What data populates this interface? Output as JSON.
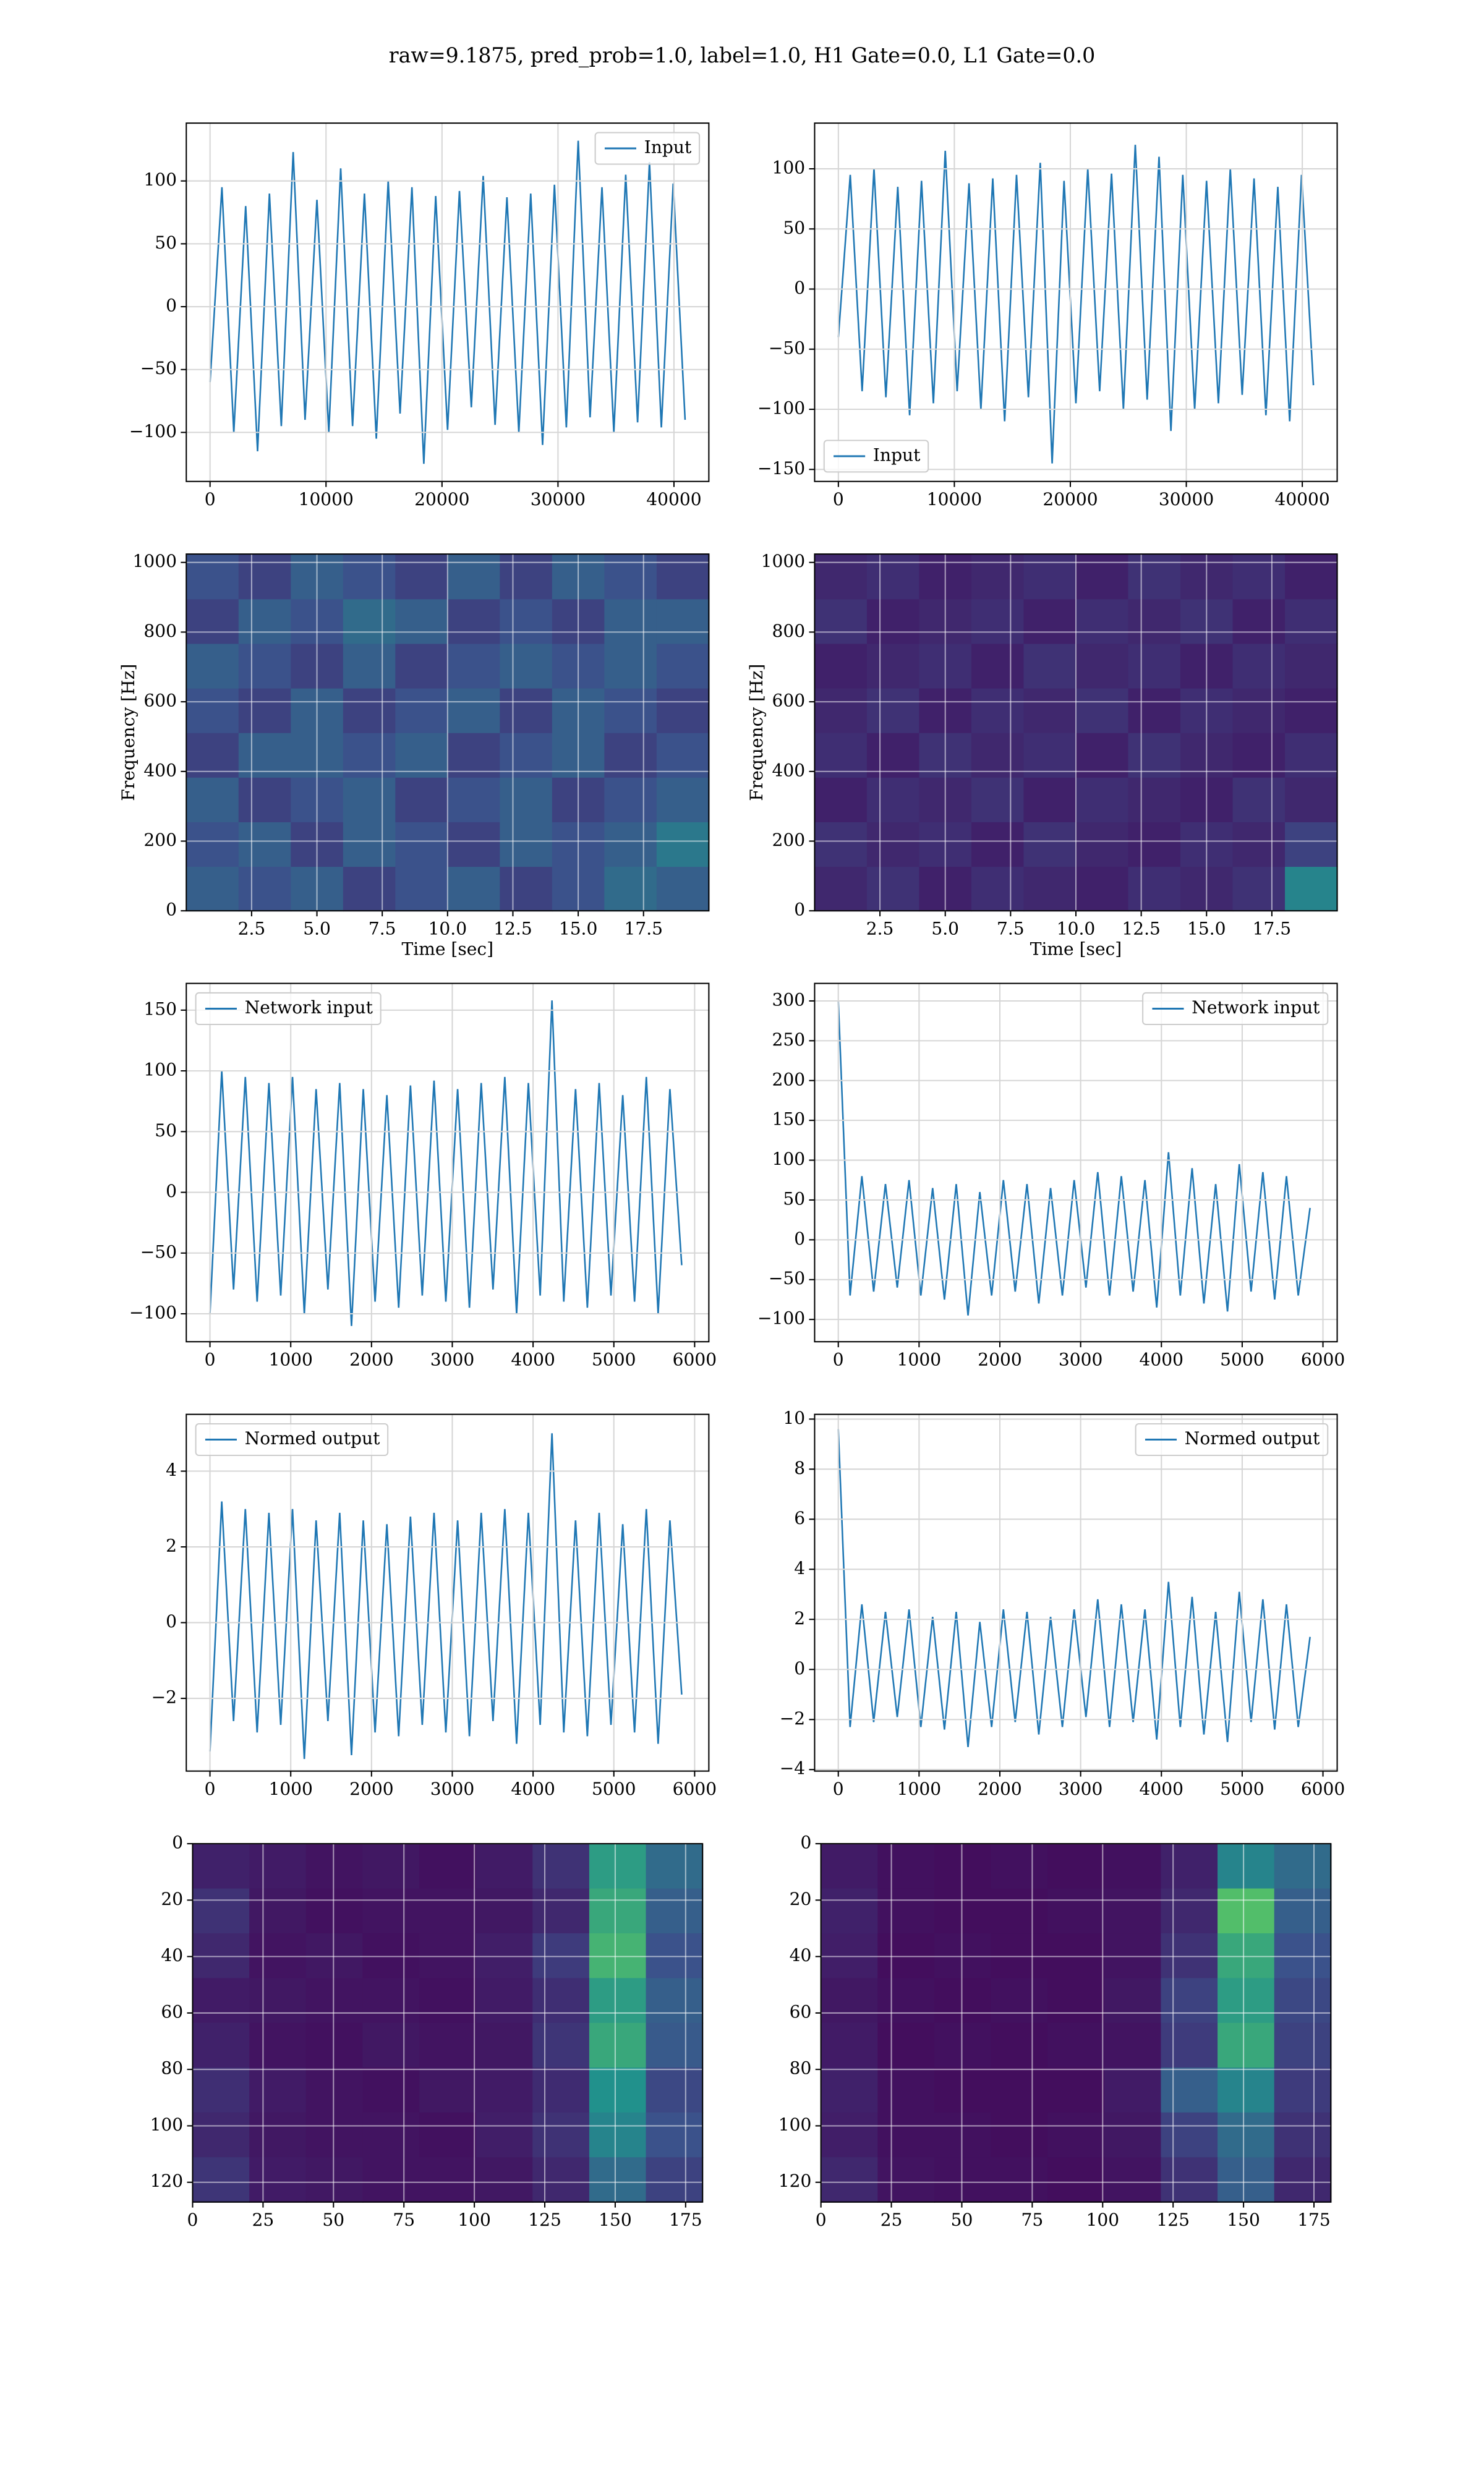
{
  "figure_title": "raw=9.1875, pred_prob=1.0, label=1.0, H1 Gate=0.0, L1 Gate=0.0",
  "chart_data": [
    {
      "type": "line",
      "legend": "upper right",
      "grid": true,
      "x": [
        0,
        1024,
        2048,
        3072,
        4096,
        5120,
        6144,
        7168,
        8192,
        9216,
        10240,
        11264,
        12288,
        13312,
        14336,
        15360,
        16384,
        17408,
        18432,
        19456,
        20480,
        21504,
        22528,
        23552,
        24576,
        25600,
        26624,
        27648,
        28672,
        29696,
        30720,
        31744,
        32768,
        33792,
        34816,
        35840,
        36864,
        37888,
        38912,
        39936,
        40960
      ],
      "series": [
        {
          "name": "Input",
          "color": "#1f77b4",
          "values": [
            -60,
            95,
            -100,
            80,
            -115,
            90,
            -95,
            123,
            -90,
            85,
            -100,
            110,
            -95,
            90,
            -105,
            100,
            -85,
            95,
            -125,
            88,
            -98,
            92,
            -80,
            104,
            -94,
            87,
            -100,
            90,
            -110,
            97,
            -96,
            132,
            -88,
            95,
            -100,
            105,
            -92,
            115,
            -96,
            98,
            -90
          ]
        }
      ],
      "xlim": [
        -2048,
        43008
      ],
      "xticks": [
        0,
        10000,
        20000,
        30000,
        40000
      ],
      "ylim": [
        -139,
        146
      ],
      "yticks": [
        {
          "value": -100,
          "label": "−100"
        },
        {
          "value": -50,
          "label": "−50"
        },
        0,
        50,
        100
      ]
    },
    {
      "type": "line",
      "legend": "lower left",
      "grid": true,
      "x": [
        0,
        1024,
        2048,
        3072,
        4096,
        5120,
        6144,
        7168,
        8192,
        9216,
        10240,
        11264,
        12288,
        13312,
        14336,
        15360,
        16384,
        17408,
        18432,
        19456,
        20480,
        21504,
        22528,
        23552,
        24576,
        25600,
        26624,
        27648,
        28672,
        29696,
        30720,
        31744,
        32768,
        33792,
        34816,
        35840,
        36864,
        37888,
        38912,
        39936,
        40960
      ],
      "series": [
        {
          "name": "Input",
          "color": "#1f77b4",
          "values": [
            -40,
            95,
            -85,
            100,
            -90,
            85,
            -105,
            90,
            -95,
            115,
            -85,
            88,
            -100,
            92,
            -110,
            95,
            -90,
            105,
            -145,
            90,
            -95,
            100,
            -85,
            96,
            -100,
            120,
            -92,
            110,
            -118,
            95,
            -100,
            90,
            -95,
            100,
            -88,
            92,
            -105,
            85,
            -110,
            95,
            -80
          ]
        }
      ],
      "xlim": [
        -2048,
        43008
      ],
      "xticks": [
        0,
        10000,
        20000,
        30000,
        40000
      ],
      "ylim": [
        -160,
        138
      ],
      "yticks": [
        {
          "value": -150,
          "label": "−150"
        },
        {
          "value": -100,
          "label": "−100"
        },
        {
          "value": -50,
          "label": "−50"
        },
        0,
        50,
        100
      ]
    },
    {
      "type": "heatmap",
      "colormap": "viridis",
      "grid": true,
      "xlabel": "Time [sec]",
      "ylabel": "Frequency [Hz]",
      "values": [
        [
          0.3,
          0.25,
          0.3,
          0.2,
          0.25,
          0.3,
          0.2,
          0.25,
          0.35,
          0.3
        ],
        [
          0.25,
          0.3,
          0.2,
          0.3,
          0.25,
          0.2,
          0.3,
          0.25,
          0.3,
          0.4
        ],
        [
          0.3,
          0.2,
          0.25,
          0.3,
          0.2,
          0.25,
          0.3,
          0.2,
          0.25,
          0.3
        ],
        [
          0.2,
          0.3,
          0.3,
          0.25,
          0.3,
          0.2,
          0.25,
          0.3,
          0.2,
          0.25
        ],
        [
          0.25,
          0.2,
          0.3,
          0.2,
          0.25,
          0.3,
          0.2,
          0.3,
          0.25,
          0.2
        ],
        [
          0.3,
          0.25,
          0.2,
          0.3,
          0.2,
          0.25,
          0.3,
          0.25,
          0.3,
          0.25
        ],
        [
          0.2,
          0.3,
          0.25,
          0.35,
          0.3,
          0.2,
          0.25,
          0.2,
          0.3,
          0.3
        ],
        [
          0.25,
          0.2,
          0.3,
          0.25,
          0.2,
          0.3,
          0.2,
          0.3,
          0.25,
          0.2
        ]
      ],
      "xlim": [
        0,
        20
      ],
      "xticks": [
        2.5,
        {
          "value": 5,
          "label": "5.0"
        },
        7.5,
        {
          "value": 10,
          "label": "10.0"
        },
        12.5,
        {
          "value": 15,
          "label": "15.0"
        },
        17.5
      ],
      "ylim": [
        0,
        1024
      ],
      "yticks": [
        0,
        200,
        400,
        600,
        800,
        1000
      ]
    },
    {
      "type": "heatmap",
      "colormap": "viridis",
      "grid": true,
      "xlabel": "Time [sec]",
      "ylabel": "Frequency [Hz]",
      "values": [
        [
          0.12,
          0.15,
          0.1,
          0.14,
          0.12,
          0.1,
          0.14,
          0.12,
          0.15,
          0.45
        ],
        [
          0.15,
          0.12,
          0.14,
          0.1,
          0.15,
          0.12,
          0.1,
          0.14,
          0.12,
          0.2
        ],
        [
          0.1,
          0.14,
          0.12,
          0.15,
          0.1,
          0.14,
          0.12,
          0.1,
          0.15,
          0.12
        ],
        [
          0.14,
          0.1,
          0.15,
          0.12,
          0.14,
          0.1,
          0.15,
          0.12,
          0.1,
          0.14
        ],
        [
          0.12,
          0.15,
          0.1,
          0.14,
          0.12,
          0.15,
          0.1,
          0.14,
          0.12,
          0.1
        ],
        [
          0.1,
          0.12,
          0.14,
          0.1,
          0.15,
          0.12,
          0.14,
          0.1,
          0.14,
          0.12
        ],
        [
          0.15,
          0.1,
          0.12,
          0.14,
          0.1,
          0.14,
          0.12,
          0.15,
          0.1,
          0.14
        ],
        [
          0.12,
          0.14,
          0.1,
          0.12,
          0.14,
          0.1,
          0.15,
          0.12,
          0.14,
          0.1
        ]
      ],
      "xlim": [
        0,
        20
      ],
      "xticks": [
        2.5,
        {
          "value": 5,
          "label": "5.0"
        },
        7.5,
        {
          "value": 10,
          "label": "10.0"
        },
        12.5,
        {
          "value": 15,
          "label": "15.0"
        },
        17.5
      ],
      "ylim": [
        0,
        1024
      ],
      "yticks": [
        0,
        200,
        400,
        600,
        800,
        1000
      ]
    },
    {
      "type": "line",
      "legend": "upper left",
      "grid": true,
      "x": [
        0,
        146,
        292,
        438,
        584,
        730,
        876,
        1022,
        1168,
        1314,
        1460,
        1606,
        1752,
        1898,
        2044,
        2190,
        2336,
        2482,
        2628,
        2774,
        2920,
        3066,
        3212,
        3358,
        3504,
        3650,
        3796,
        3942,
        4088,
        4234,
        4380,
        4526,
        4672,
        4818,
        4964,
        5110,
        5256,
        5402,
        5548,
        5694,
        5840
      ],
      "series": [
        {
          "name": "Network input",
          "color": "#1f77b4",
          "values": [
            -100,
            100,
            -80,
            95,
            -90,
            90,
            -85,
            95,
            -100,
            85,
            -80,
            90,
            -110,
            85,
            -90,
            80,
            -95,
            88,
            -85,
            92,
            -90,
            85,
            -95,
            90,
            -80,
            95,
            -100,
            90,
            -85,
            158,
            -90,
            85,
            -95,
            90,
            -85,
            80,
            -90,
            95,
            -100,
            85,
            -60
          ]
        }
      ],
      "xlim": [
        -293,
        6176
      ],
      "xticks": [
        0,
        1000,
        2000,
        3000,
        4000,
        5000,
        6000
      ],
      "ylim": [
        -123,
        172
      ],
      "yticks": [
        {
          "value": -100,
          "label": "−100"
        },
        {
          "value": -50,
          "label": "−50"
        },
        0,
        50,
        100,
        150
      ]
    },
    {
      "type": "line",
      "legend": "upper right",
      "grid": true,
      "x": [
        0,
        146,
        292,
        438,
        584,
        730,
        876,
        1022,
        1168,
        1314,
        1460,
        1606,
        1752,
        1898,
        2044,
        2190,
        2336,
        2482,
        2628,
        2774,
        2920,
        3066,
        3212,
        3358,
        3504,
        3650,
        3796,
        3942,
        4088,
        4234,
        4380,
        4526,
        4672,
        4818,
        4964,
        5110,
        5256,
        5402,
        5548,
        5694,
        5840
      ],
      "series": [
        {
          "name": "Network input",
          "color": "#1f77b4",
          "values": [
            300,
            -70,
            80,
            -65,
            70,
            -60,
            75,
            -70,
            65,
            -75,
            70,
            -95,
            60,
            -70,
            75,
            -65,
            70,
            -80,
            65,
            -70,
            75,
            -60,
            85,
            -70,
            80,
            -65,
            75,
            -85,
            110,
            -70,
            90,
            -80,
            70,
            -90,
            95,
            -65,
            85,
            -75,
            80,
            -70,
            40
          ]
        }
      ],
      "xlim": [
        -293,
        6176
      ],
      "xticks": [
        0,
        1000,
        2000,
        3000,
        4000,
        5000,
        6000
      ],
      "ylim": [
        -128,
        322
      ],
      "yticks": [
        {
          "value": -100,
          "label": "−100"
        },
        {
          "value": -50,
          "label": "−50"
        },
        0,
        50,
        100,
        150,
        200,
        250,
        300
      ]
    },
    {
      "type": "line",
      "legend": "upper left",
      "grid": true,
      "x": [
        0,
        146,
        292,
        438,
        584,
        730,
        876,
        1022,
        1168,
        1314,
        1460,
        1606,
        1752,
        1898,
        2044,
        2190,
        2336,
        2482,
        2628,
        2774,
        2920,
        3066,
        3212,
        3358,
        3504,
        3650,
        3796,
        3942,
        4088,
        4234,
        4380,
        4526,
        4672,
        4818,
        4964,
        5110,
        5256,
        5402,
        5548,
        5694,
        5840
      ],
      "series": [
        {
          "name": "Normed output",
          "color": "#1f77b4",
          "values": [
            -3.4,
            3.2,
            -2.6,
            3.0,
            -2.9,
            2.9,
            -2.7,
            3.0,
            -3.6,
            2.7,
            -2.6,
            2.9,
            -3.5,
            2.7,
            -2.9,
            2.6,
            -3.0,
            2.8,
            -2.7,
            2.9,
            -2.9,
            2.7,
            -3.0,
            2.9,
            -2.6,
            3.0,
            -3.2,
            2.9,
            -2.7,
            5.0,
            -2.9,
            2.7,
            -3.0,
            2.9,
            -2.7,
            2.6,
            -2.9,
            3.0,
            -3.2,
            2.7,
            -1.9
          ]
        }
      ],
      "xlim": [
        -293,
        6176
      ],
      "xticks": [
        0,
        1000,
        2000,
        3000,
        4000,
        5000,
        6000
      ],
      "ylim": [
        -3.92,
        5.5
      ],
      "yticks": [
        {
          "value": -2,
          "label": "−2"
        },
        0,
        2,
        4
      ]
    },
    {
      "type": "line",
      "legend": "upper right",
      "grid": true,
      "x": [
        0,
        146,
        292,
        438,
        584,
        730,
        876,
        1022,
        1168,
        1314,
        1460,
        1606,
        1752,
        1898,
        2044,
        2190,
        2336,
        2482,
        2628,
        2774,
        2920,
        3066,
        3212,
        3358,
        3504,
        3650,
        3796,
        3942,
        4088,
        4234,
        4380,
        4526,
        4672,
        4818,
        4964,
        5110,
        5256,
        5402,
        5548,
        5694,
        5840
      ],
      "series": [
        {
          "name": "Normed output",
          "color": "#1f77b4",
          "values": [
            9.6,
            -2.3,
            2.6,
            -2.1,
            2.3,
            -1.9,
            2.4,
            -2.3,
            2.1,
            -2.4,
            2.3,
            -3.1,
            1.9,
            -2.3,
            2.4,
            -2.1,
            2.3,
            -2.6,
            2.1,
            -2.3,
            2.4,
            -1.9,
            2.8,
            -2.3,
            2.6,
            -2.1,
            2.4,
            -2.8,
            3.5,
            -2.3,
            2.9,
            -2.6,
            2.3,
            -2.9,
            3.1,
            -2.1,
            2.8,
            -2.4,
            2.6,
            -2.3,
            1.3
          ]
        }
      ],
      "xlim": [
        -293,
        6176
      ],
      "xticks": [
        0,
        1000,
        2000,
        3000,
        4000,
        5000,
        6000
      ],
      "ylim": [
        -4.06,
        10.19
      ],
      "yticks": [
        {
          "value": -4,
          "label": "−4"
        },
        {
          "value": -2,
          "label": "−2"
        },
        0,
        2,
        4,
        6,
        8,
        10
      ]
    },
    {
      "type": "heatmap",
      "colormap": "viridis",
      "grid": true,
      "yinvert": true,
      "values": [
        [
          0.1,
          0.08,
          0.06,
          0.07,
          0.05,
          0.08,
          0.15,
          0.55,
          0.35
        ],
        [
          0.15,
          0.07,
          0.05,
          0.06,
          0.06,
          0.07,
          0.12,
          0.6,
          0.3
        ],
        [
          0.12,
          0.06,
          0.07,
          0.05,
          0.06,
          0.09,
          0.18,
          0.65,
          0.25
        ],
        [
          0.08,
          0.07,
          0.06,
          0.06,
          0.05,
          0.08,
          0.14,
          0.55,
          0.3
        ],
        [
          0.1,
          0.06,
          0.05,
          0.07,
          0.06,
          0.07,
          0.16,
          0.6,
          0.28
        ],
        [
          0.14,
          0.08,
          0.06,
          0.05,
          0.07,
          0.08,
          0.13,
          0.5,
          0.22
        ],
        [
          0.12,
          0.07,
          0.06,
          0.06,
          0.05,
          0.09,
          0.15,
          0.45,
          0.25
        ],
        [
          0.16,
          0.08,
          0.07,
          0.06,
          0.06,
          0.07,
          0.12,
          0.35,
          0.2
        ]
      ],
      "xlim": [
        0,
        181
      ],
      "xticks": [
        0,
        25,
        50,
        75,
        100,
        125,
        150,
        175
      ],
      "ylim": [
        0,
        127
      ],
      "yticks": [
        0,
        20,
        40,
        60,
        80,
        100,
        120
      ]
    },
    {
      "type": "heatmap",
      "colormap": "viridis",
      "grid": true,
      "yinvert": true,
      "values": [
        [
          0.08,
          0.05,
          0.04,
          0.05,
          0.04,
          0.05,
          0.1,
          0.45,
          0.35
        ],
        [
          0.1,
          0.05,
          0.04,
          0.04,
          0.05,
          0.06,
          0.12,
          0.7,
          0.3
        ],
        [
          0.09,
          0.04,
          0.05,
          0.04,
          0.04,
          0.06,
          0.15,
          0.6,
          0.25
        ],
        [
          0.07,
          0.05,
          0.04,
          0.05,
          0.04,
          0.07,
          0.2,
          0.55,
          0.22
        ],
        [
          0.08,
          0.04,
          0.05,
          0.04,
          0.05,
          0.06,
          0.18,
          0.6,
          0.2
        ],
        [
          0.1,
          0.05,
          0.04,
          0.04,
          0.04,
          0.08,
          0.3,
          0.45,
          0.18
        ],
        [
          0.09,
          0.05,
          0.05,
          0.04,
          0.05,
          0.07,
          0.2,
          0.35,
          0.15
        ],
        [
          0.12,
          0.06,
          0.05,
          0.05,
          0.04,
          0.06,
          0.15,
          0.3,
          0.12
        ]
      ],
      "xlim": [
        0,
        181
      ],
      "xticks": [
        0,
        25,
        50,
        75,
        100,
        125,
        150,
        175
      ],
      "ylim": [
        0,
        127
      ],
      "yticks": [
        0,
        20,
        40,
        60,
        80,
        100,
        120
      ]
    }
  ]
}
